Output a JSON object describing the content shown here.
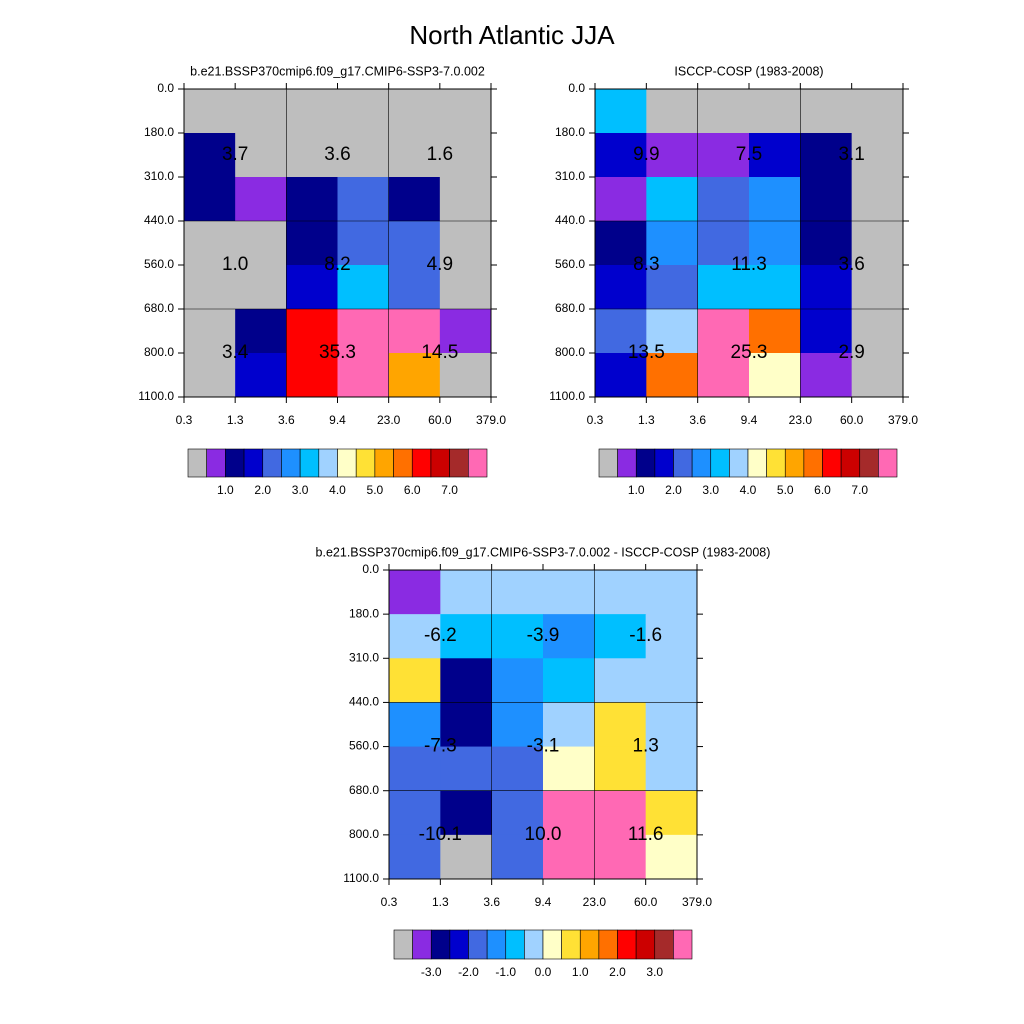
{
  "title": "North Atlantic JJA",
  "chart_data": [
    {
      "type": "heatmap",
      "title": "b.e21.BSSP370cmip6.f09_g17.CMIP6-SSP3-7.0.002",
      "xticks": [
        0.3,
        1.3,
        3.6,
        9.4,
        {
          "value": 23,
          "label": "23.0"
        },
        {
          "value": 60,
          "label": "60.0"
        },
        {
          "value": 379,
          "label": "379.0"
        }
      ],
      "yticks": [
        {
          "value": 0,
          "label": "0.0"
        },
        {
          "value": 180,
          "label": "180.0"
        },
        {
          "value": 310,
          "label": "310.0"
        },
        {
          "value": 440,
          "label": "440.0"
        },
        {
          "value": 560,
          "label": "560.0"
        },
        {
          "value": 680,
          "label": "680.0"
        },
        {
          "value": 800,
          "label": "800.0"
        },
        {
          "value": 1100,
          "label": "1100.0"
        }
      ],
      "z": [
        [
          0.2,
          0.2,
          0.2,
          0.2,
          0.2,
          0.2
        ],
        [
          1.25,
          0.2,
          0.2,
          0.2,
          0.2,
          0.2
        ],
        [
          1.25,
          0.75,
          1.25,
          2.25,
          1.25,
          0.2
        ],
        [
          0.2,
          0.2,
          1.25,
          2.25,
          2.25,
          0.2
        ],
        [
          0.2,
          0.2,
          1.75,
          3.25,
          2.25,
          0.2
        ],
        [
          0.2,
          1.25,
          6.25,
          11.4,
          8.3,
          0.75
        ],
        [
          0.2,
          1.75,
          6.25,
          11.4,
          5.25,
          0.2
        ]
      ],
      "levels": [
        0.5,
        1,
        1.5,
        2,
        2.5,
        3,
        3.5,
        4,
        4.5,
        5,
        5.5,
        6,
        6.5,
        7,
        7.5
      ],
      "colors": [
        "#bebebe",
        "#8a2be2",
        "#00008b",
        "#0000cd",
        "#4169e1",
        "#1e90ff",
        "#00bfff",
        "#a0d2ff",
        "#ffffc8",
        "#ffe135",
        "#ffa500",
        "#ff7000",
        "#ff0000",
        "#cc0000",
        "#a52a2a",
        "#ff69b4"
      ],
      "colorbar_ticks": [
        {
          "value": 1,
          "label": "1.0"
        },
        {
          "value": 2,
          "label": "2.0"
        },
        {
          "value": 3,
          "label": "3.0"
        },
        {
          "value": 4,
          "label": "4.0"
        },
        {
          "value": 5,
          "label": "5.0"
        },
        {
          "value": 6,
          "label": "6.0"
        },
        {
          "value": 7,
          "label": "7.0"
        }
      ],
      "block_labels": [
        [
          3.7,
          3.6,
          1.6
        ],
        [
          {
            "value": 1,
            "label": "1.0"
          },
          8.2,
          4.9
        ],
        [
          3.4,
          35.3,
          14.5
        ]
      ]
    },
    {
      "type": "heatmap",
      "title": "ISCCP-COSP (1983-2008)",
      "xticks": [
        0.3,
        1.3,
        3.6,
        9.4,
        {
          "value": 23,
          "label": "23.0"
        },
        {
          "value": 60,
          "label": "60.0"
        },
        {
          "value": 379,
          "label": "379.0"
        }
      ],
      "yticks": [
        {
          "value": 0,
          "label": "0.0"
        },
        {
          "value": 180,
          "label": "180.0"
        },
        {
          "value": 310,
          "label": "310.0"
        },
        {
          "value": 440,
          "label": "440.0"
        },
        {
          "value": 560,
          "label": "560.0"
        },
        {
          "value": 680,
          "label": "680.0"
        },
        {
          "value": 800,
          "label": "800.0"
        },
        {
          "value": 1100,
          "label": "1100.0"
        }
      ],
      "z": [
        [
          3.25,
          0.2,
          0.2,
          0.2,
          0.2,
          0.2
        ],
        [
          1.75,
          0.75,
          0.75,
          1.75,
          1.25,
          0.2
        ],
        [
          0.75,
          3.25,
          2.25,
          2.75,
          1.25,
          0.2
        ],
        [
          1.25,
          2.75,
          2.25,
          2.75,
          1.25,
          0.2
        ],
        [
          1.75,
          2.25,
          3.25,
          3.25,
          1.75,
          0.2
        ],
        [
          2.25,
          3.75,
          7.65,
          5.75,
          1.75,
          0.2
        ],
        [
          1.75,
          5.75,
          7.65,
          4.25,
          0.75,
          0.2
        ]
      ],
      "levels": [
        0.5,
        1,
        1.5,
        2,
        2.5,
        3,
        3.5,
        4,
        4.5,
        5,
        5.5,
        6,
        6.5,
        7,
        7.5
      ],
      "colors": [
        "#bebebe",
        "#8a2be2",
        "#00008b",
        "#0000cd",
        "#4169e1",
        "#1e90ff",
        "#00bfff",
        "#a0d2ff",
        "#ffffc8",
        "#ffe135",
        "#ffa500",
        "#ff7000",
        "#ff0000",
        "#cc0000",
        "#a52a2a",
        "#ff69b4"
      ],
      "colorbar_ticks": [
        {
          "value": 1,
          "label": "1.0"
        },
        {
          "value": 2,
          "label": "2.0"
        },
        {
          "value": 3,
          "label": "3.0"
        },
        {
          "value": 4,
          "label": "4.0"
        },
        {
          "value": 5,
          "label": "5.0"
        },
        {
          "value": 6,
          "label": "6.0"
        },
        {
          "value": 7,
          "label": "7.0"
        }
      ],
      "block_labels": [
        [
          9.9,
          7.5,
          3.1
        ],
        [
          8.3,
          11.3,
          3.6
        ],
        [
          13.5,
          25.3,
          2.9
        ]
      ]
    },
    {
      "type": "heatmap",
      "title": "b.e21.BSSP370cmip6.f09_g17.CMIP6-SSP3-7.0.002 - ISCCP-COSP (1983-2008)",
      "xticks": [
        0.3,
        1.3,
        3.6,
        9.4,
        {
          "value": 23,
          "label": "23.0"
        },
        {
          "value": 60,
          "label": "60.0"
        },
        {
          "value": 379,
          "label": "379.0"
        }
      ],
      "yticks": [
        {
          "value": 0,
          "label": "0.0"
        },
        {
          "value": 180,
          "label": "180.0"
        },
        {
          "value": 310,
          "label": "310.0"
        },
        {
          "value": 440,
          "label": "440.0"
        },
        {
          "value": 560,
          "label": "560.0"
        },
        {
          "value": 680,
          "label": "680.0"
        },
        {
          "value": 800,
          "label": "800.0"
        },
        {
          "value": 1100,
          "label": "1100.0"
        }
      ],
      "z": [
        [
          -3.25,
          -0.25,
          -0.25,
          -0.25,
          -0.25,
          -0.25
        ],
        [
          -0.25,
          -0.75,
          -0.75,
          -1.25,
          -0.75,
          -0.25
        ],
        [
          0.75,
          -2.75,
          -1.25,
          -0.75,
          -0.25,
          -0.25
        ],
        [
          -1.25,
          -2.75,
          -1.25,
          -0.25,
          0.75,
          -0.25
        ],
        [
          -1.75,
          -1.75,
          -1.75,
          0.25,
          0.75,
          -0.25
        ],
        [
          -1.75,
          -2.75,
          -1.75,
          6.75,
          5.3,
          0.75
        ],
        [
          -1.75,
          -4.2,
          -1.75,
          6.75,
          5.3,
          0.25
        ]
      ],
      "levels": [
        -3.5,
        -3,
        -2.5,
        -2,
        -1.5,
        -1,
        -0.5,
        0,
        0.5,
        1,
        1.5,
        2,
        2.5,
        3,
        3.5
      ],
      "colors": [
        "#bebebe",
        "#8a2be2",
        "#00008b",
        "#0000cd",
        "#4169e1",
        "#1e90ff",
        "#00bfff",
        "#a0d2ff",
        "#ffffc8",
        "#ffe135",
        "#ffa500",
        "#ff7000",
        "#ff0000",
        "#cc0000",
        "#a52a2a",
        "#ff69b4"
      ],
      "colorbar_ticks": [
        {
          "value": -3,
          "label": "-3.0"
        },
        {
          "value": -2,
          "label": "-2.0"
        },
        {
          "value": -1,
          "label": "-1.0"
        },
        {
          "value": 0,
          "label": "0.0"
        },
        {
          "value": 1,
          "label": "1.0"
        },
        {
          "value": 2,
          "label": "2.0"
        },
        {
          "value": 3,
          "label": "3.0"
        }
      ],
      "block_labels": [
        [
          -6.2,
          -3.9,
          -1.6
        ],
        [
          -7.3,
          -3.1,
          1.3
        ],
        [
          -10.1,
          {
            "value": 10,
            "label": "10.0"
          },
          11.6
        ]
      ]
    }
  ]
}
